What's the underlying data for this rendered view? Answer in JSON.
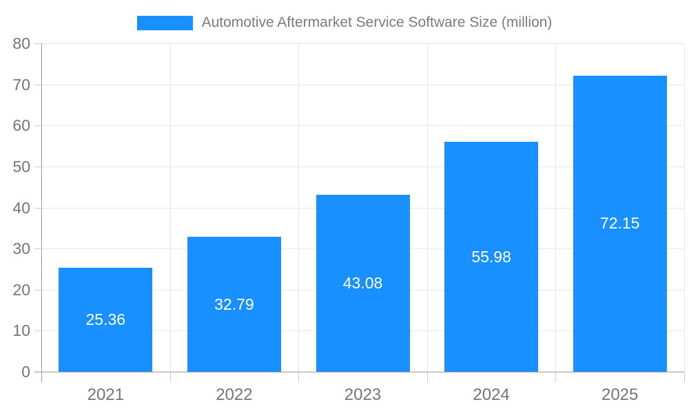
{
  "chart_data": {
    "type": "bar",
    "title": "Automotive Aftermarket Service Software Size (million)",
    "legend": [
      "Automotive Aftermarket Service Software Size (million)"
    ],
    "legend_position": "top",
    "categories": [
      "2021",
      "2022",
      "2023",
      "2024",
      "2025"
    ],
    "values": [
      25.36,
      32.79,
      43.08,
      55.98,
      72.15
    ],
    "value_labels": [
      "25.36",
      "32.79",
      "43.08",
      "55.98",
      "72.15"
    ],
    "xlabel": "",
    "ylabel": "",
    "ylim": [
      0,
      80
    ],
    "ytick_step": 10,
    "ytick_labels": [
      "0",
      "10",
      "20",
      "30",
      "40",
      "50",
      "60",
      "70",
      "80"
    ],
    "grid": true,
    "colors": {
      "bar": "#1890ff",
      "bar_value_text": "#ffffff",
      "legend_text": "#7b7b7b",
      "axis_text": "#757575",
      "gridline": "#e6e6e6",
      "axis_line": "#999999",
      "tick": "#cccccc",
      "background": "#ffffff"
    }
  }
}
